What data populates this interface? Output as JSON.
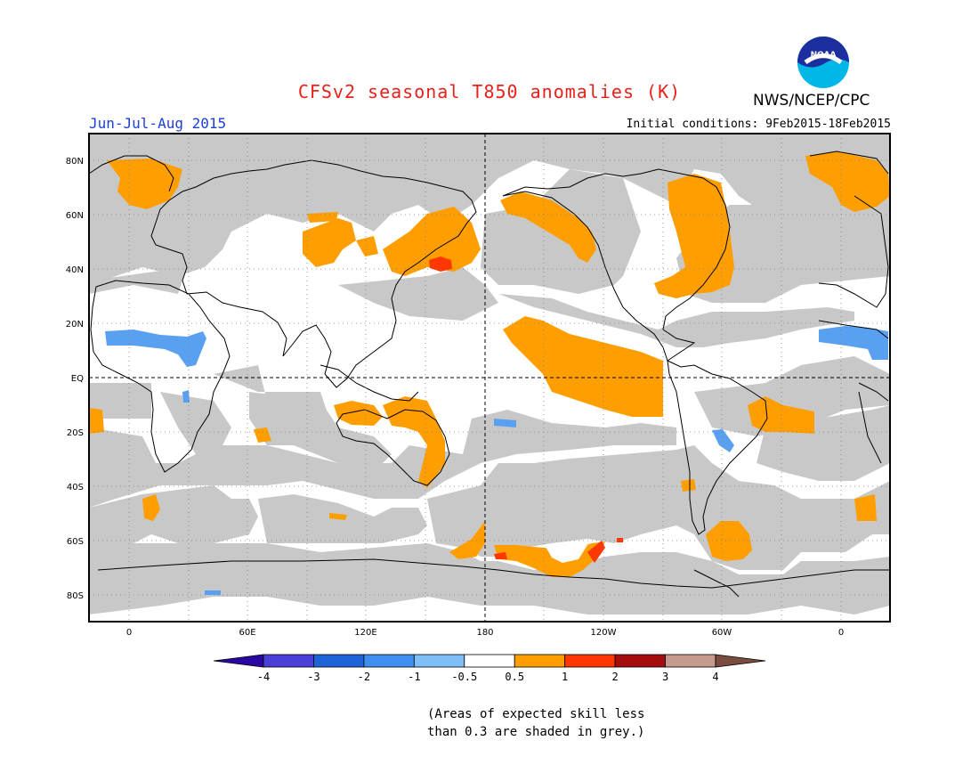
{
  "header": {
    "title": "CFSv2 seasonal T850 anomalies (K)",
    "agency": "NWS/NCEP/CPC",
    "logo_text": "NOAA",
    "season": "Jun-Jul-Aug 2015",
    "initial_conditions": "Initial conditions: 9Feb2015-18Feb2015"
  },
  "map": {
    "lat_labels": [
      "80N",
      "60N",
      "40N",
      "20N",
      "EQ",
      "20S",
      "40S",
      "60S",
      "80S"
    ],
    "lon_labels": [
      "0",
      "60E",
      "120E",
      "180",
      "120W",
      "60W",
      "0"
    ]
  },
  "colorbar": {
    "labels": [
      "-4",
      "-3",
      "-2",
      "-1",
      "-0.5",
      "0.5",
      "1",
      "2",
      "3",
      "4"
    ],
    "colors": [
      "#2a07a0",
      "#4a3fd6",
      "#1e64d8",
      "#3f8ff0",
      "#7fbff7",
      "#ffffff",
      "#ff9e00",
      "#ff3700",
      "#a30d0d",
      "#c49a8c",
      "#7a4e3f"
    ]
  },
  "footnote": {
    "line1": "(Areas of expected skill less",
    "line2": "than 0.3 are shaded in grey.)"
  },
  "colors": {
    "grey_skill": "#c8c8c8",
    "warm_1": "#ff9e00",
    "warm_2": "#ff3700",
    "cool_1": "#5aa0f0"
  }
}
